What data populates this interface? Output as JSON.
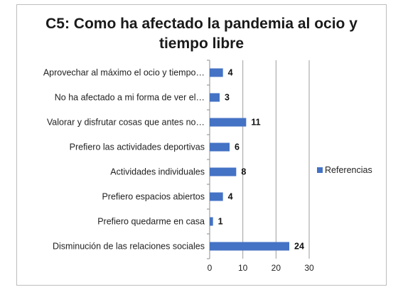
{
  "chart_data": {
    "type": "bar",
    "orientation": "horizontal",
    "title_line1": "C5: Como ha afectado la pandemia al ocio y",
    "title_line2": "tiempo libre",
    "categories": [
      "Aprovechar al máximo el ocio y tiempo…",
      "No ha afectado a mi forma de ver el…",
      "Valorar y disfrutar cosas que antes no…",
      "Prefiero las actividades deportivas",
      "Actividades individuales",
      "Prefiero espacios abiertos",
      "Prefiero quedarme en casa",
      "Disminución de las relaciones sociales"
    ],
    "series": [
      {
        "name": "Referencias",
        "values": [
          4,
          3,
          11,
          6,
          8,
          4,
          1,
          24
        ]
      }
    ],
    "data_labels": [
      "4",
      "3",
      "11",
      "6",
      "8",
      "4",
      "1",
      "24"
    ],
    "xlim": [
      0,
      30
    ],
    "x_ticks": [
      0,
      10,
      20,
      30
    ],
    "x_tick_labels": [
      "0",
      "10",
      "20",
      "30"
    ],
    "grid": "vertical",
    "legend_position": "right",
    "bar_color": "#4472c4"
  }
}
